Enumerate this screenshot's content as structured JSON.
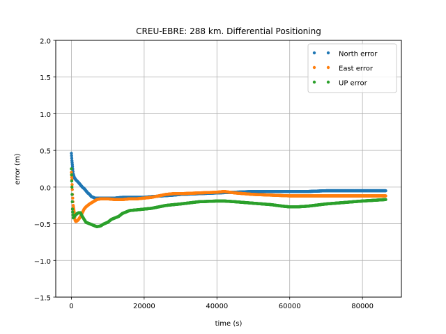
{
  "chart_data": {
    "type": "scatter",
    "title": "CREU-EBRE: 288 km. Differential Positioning",
    "xlabel": "time (s)",
    "ylabel": "error (m)",
    "xlim": [
      -4300,
      90700
    ],
    "ylim": [
      -1.5,
      2.0
    ],
    "xticks": [
      0,
      20000,
      40000,
      60000,
      80000
    ],
    "xtick_labels": [
      "0",
      "20000",
      "40000",
      "60000",
      "80000"
    ],
    "yticks": [
      -1.5,
      -1.0,
      -0.5,
      0.0,
      0.5,
      1.0,
      1.5,
      2.0
    ],
    "ytick_labels": [
      "−1.5",
      "−1.0",
      "−0.5",
      "0.0",
      "0.5",
      "1.0",
      "1.5",
      "2.0"
    ],
    "grid": true,
    "legend_position": "top-right",
    "series": [
      {
        "name": "North error",
        "color": "#1f77b4",
        "x": [
          0,
          150,
          300,
          500,
          800,
          1200,
          1600,
          2000,
          2500,
          3000,
          3500,
          4000,
          4500,
          5000,
          5500,
          6000,
          6500,
          7000,
          8000,
          10000,
          12000,
          14000,
          16000,
          18000,
          20000,
          22000,
          25000,
          28000,
          30000,
          35000,
          40000,
          45000,
          50000,
          55000,
          60000,
          65000,
          70000,
          75000,
          80000,
          86400
        ],
        "y": [
          0.46,
          0.36,
          0.28,
          0.18,
          0.13,
          0.1,
          0.08,
          0.06,
          0.03,
          0.0,
          -0.02,
          -0.05,
          -0.08,
          -0.1,
          -0.13,
          -0.14,
          -0.15,
          -0.15,
          -0.15,
          -0.15,
          -0.15,
          -0.14,
          -0.14,
          -0.14,
          -0.14,
          -0.13,
          -0.12,
          -0.11,
          -0.1,
          -0.09,
          -0.08,
          -0.07,
          -0.06,
          -0.06,
          -0.06,
          -0.06,
          -0.05,
          -0.05,
          -0.05,
          -0.05
        ]
      },
      {
        "name": "East error",
        "color": "#ff7f0e",
        "x": [
          0,
          150,
          300,
          500,
          800,
          1000,
          1200,
          1600,
          2000,
          2500,
          3000,
          3500,
          4000,
          5000,
          6000,
          7000,
          8000,
          10000,
          12000,
          14000,
          16000,
          18000,
          20000,
          22000,
          24000,
          26000,
          28000,
          30000,
          35000,
          40000,
          42000,
          45000,
          50000,
          55000,
          60000,
          65000,
          70000,
          75000,
          80000,
          86400
        ],
        "y": [
          0.2,
          0.1,
          -0.1,
          -0.25,
          -0.35,
          -0.45,
          -0.47,
          -0.46,
          -0.44,
          -0.4,
          -0.35,
          -0.3,
          -0.27,
          -0.23,
          -0.2,
          -0.17,
          -0.16,
          -0.16,
          -0.17,
          -0.17,
          -0.16,
          -0.16,
          -0.15,
          -0.14,
          -0.12,
          -0.1,
          -0.09,
          -0.09,
          -0.08,
          -0.07,
          -0.06,
          -0.08,
          -0.1,
          -0.11,
          -0.12,
          -0.12,
          -0.12,
          -0.12,
          -0.12,
          -0.12
        ]
      },
      {
        "name": "UP error",
        "color": "#2ca02c",
        "x": [
          0,
          150,
          300,
          500,
          800,
          1200,
          1600,
          2000,
          2500,
          3000,
          4000,
          5000,
          6000,
          7000,
          8000,
          9000,
          10000,
          11000,
          12000,
          13000,
          14000,
          15000,
          16000,
          18000,
          20000,
          22000,
          24000,
          26000,
          28000,
          30000,
          35000,
          40000,
          42000,
          45000,
          50000,
          55000,
          58000,
          60000,
          62000,
          65000,
          70000,
          75000,
          80000,
          86400
        ],
        "y": [
          0.25,
          0.0,
          -0.3,
          -0.42,
          -0.4,
          -0.38,
          -0.36,
          -0.35,
          -0.35,
          -0.4,
          -0.48,
          -0.5,
          -0.52,
          -0.54,
          -0.53,
          -0.5,
          -0.48,
          -0.44,
          -0.42,
          -0.4,
          -0.36,
          -0.34,
          -0.32,
          -0.31,
          -0.3,
          -0.29,
          -0.27,
          -0.25,
          -0.24,
          -0.23,
          -0.2,
          -0.19,
          -0.19,
          -0.2,
          -0.22,
          -0.24,
          -0.26,
          -0.27,
          -0.27,
          -0.26,
          -0.23,
          -0.21,
          -0.19,
          -0.17
        ]
      }
    ]
  }
}
